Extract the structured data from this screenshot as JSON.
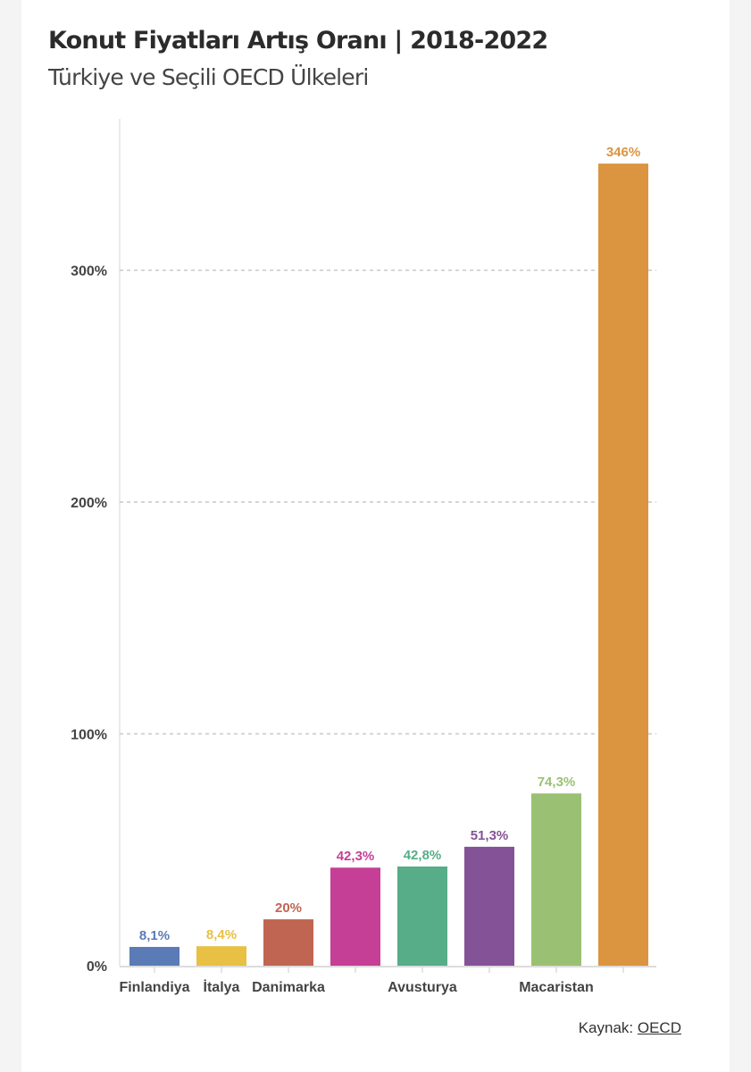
{
  "header": {
    "title": "Konut Fiyatları Artış Oranı | 2018-2022",
    "subtitle": "Türkiye ve Seçili OECD Ülkeleri"
  },
  "source": {
    "label": "Kaynak:",
    "link_text": "OECD"
  },
  "chart_data": {
    "type": "bar",
    "title": "Konut Fiyatları Artış Oranı | 2018-2022",
    "subtitle": "Türkiye ve Seçili OECD Ülkeleri",
    "xlabel": "",
    "ylabel": "",
    "ylim": [
      0,
      360
    ],
    "y_ticks": [
      0,
      100,
      200,
      300
    ],
    "y_tick_labels": [
      "0%",
      "100%",
      "200%",
      "300%"
    ],
    "grid": "horizontal dashed",
    "bars": [
      {
        "label": "Finlandiya",
        "value": 8.1,
        "value_label": "8,1%",
        "color": "#5a7bb5"
      },
      {
        "label": "İtalya",
        "value": 8.4,
        "value_label": "8,4%",
        "color": "#e8c043"
      },
      {
        "label": "Danimarka",
        "value": 20,
        "value_label": "20%",
        "color": "#c06552"
      },
      {
        "label": "",
        "value": 42.3,
        "value_label": "42,3%",
        "color": "#c63f96"
      },
      {
        "label": "Avusturya",
        "value": 42.8,
        "value_label": "42,8%",
        "color": "#56ad88"
      },
      {
        "label": "",
        "value": 51.3,
        "value_label": "51,3%",
        "color": "#845296"
      },
      {
        "label": "Macaristan",
        "value": 74.3,
        "value_label": "74,3%",
        "color": "#9ac173"
      },
      {
        "label": "",
        "value": 346,
        "value_label": "346%",
        "color": "#db9440"
      }
    ]
  }
}
